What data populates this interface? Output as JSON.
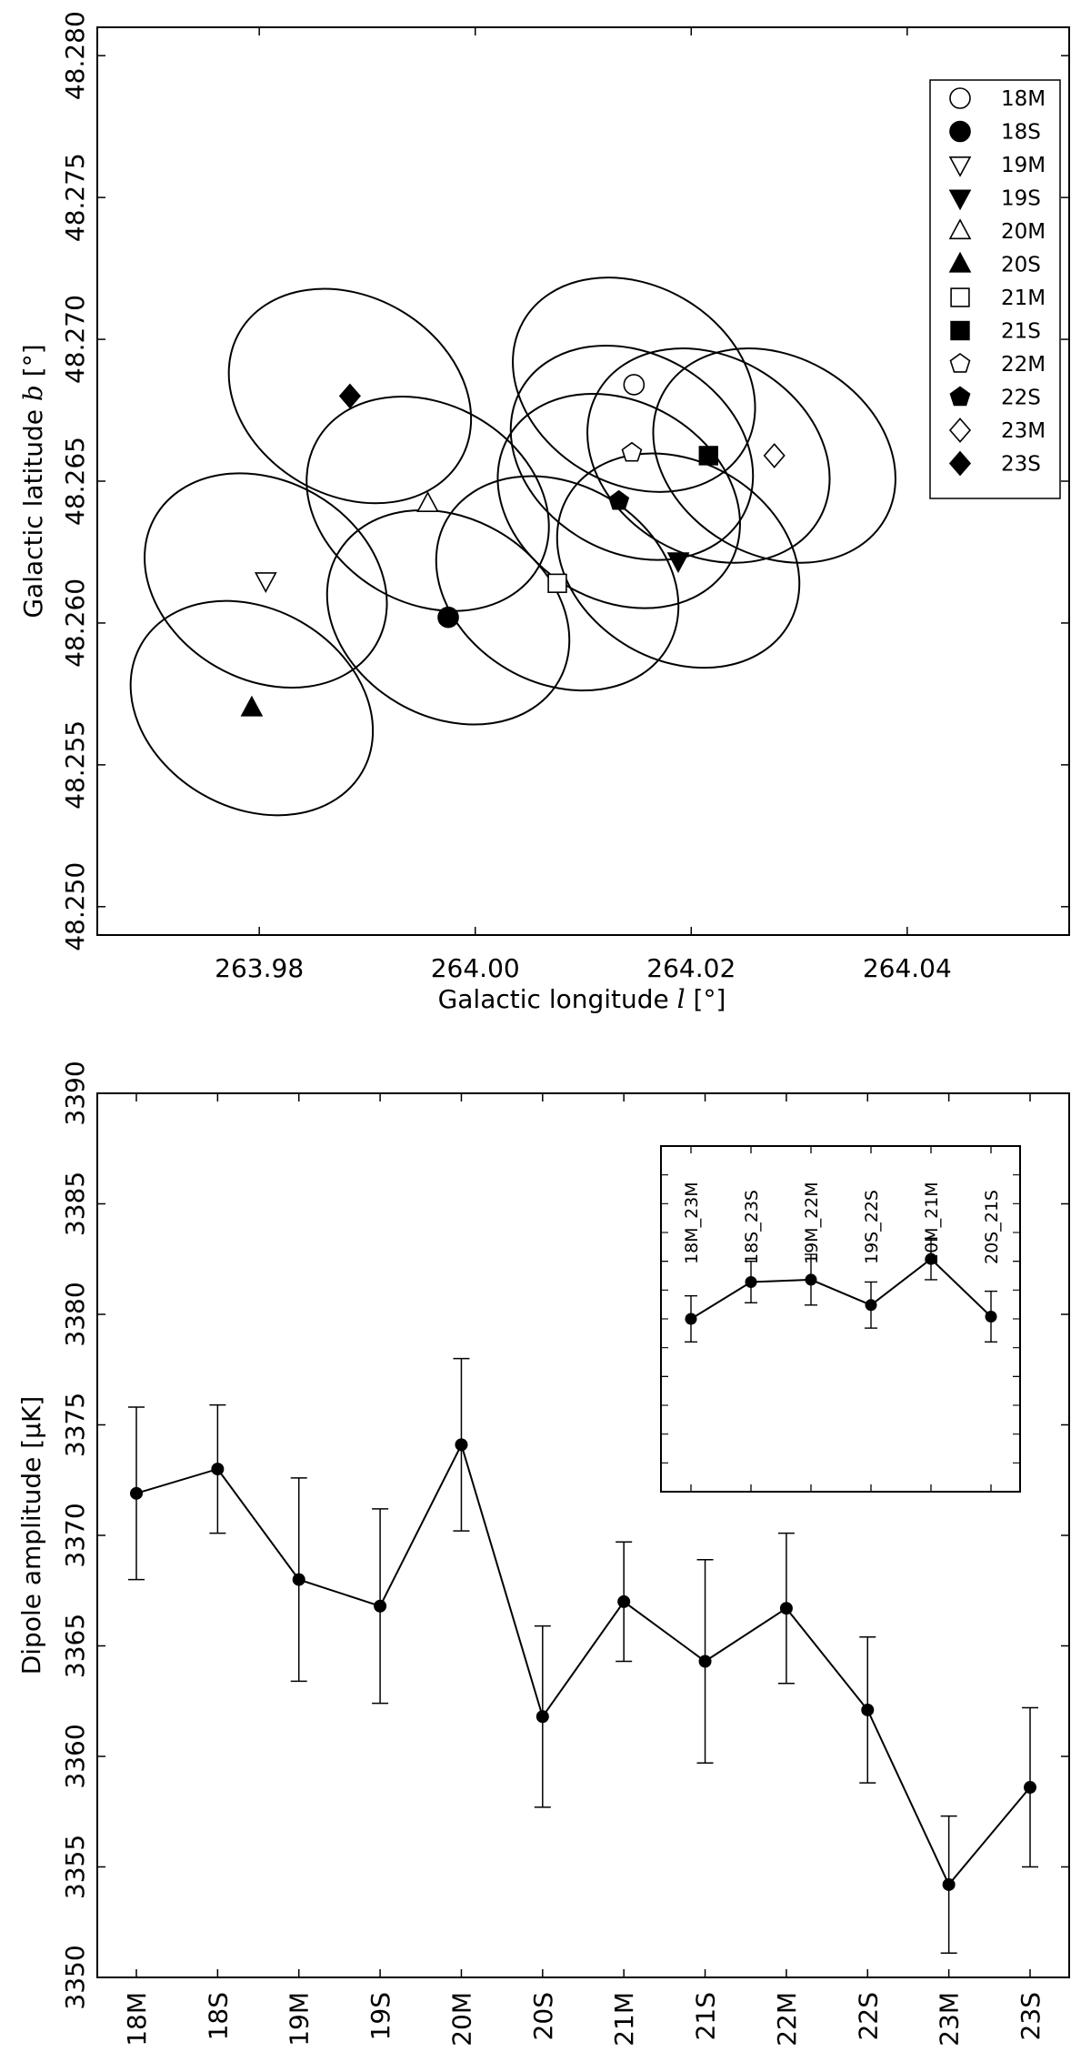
{
  "chart_data": [
    {
      "type": "scatter",
      "xlabel": "Galactic longitude",
      "xlabel_sym": "l",
      "xlabel_unit": "[°]",
      "ylabel": "Galactic latitude",
      "ylabel_sym": "b",
      "ylabel_unit": "[°]",
      "xlim": [
        263.965,
        264.055
      ],
      "ylim": [
        48.249,
        48.281
      ],
      "xticks": [
        263.98,
        264.0,
        264.02,
        264.04
      ],
      "xtick_labels": [
        "263.98",
        "264.00",
        "264.02",
        "264.04"
      ],
      "yticks": [
        48.25,
        48.255,
        48.26,
        48.265,
        48.27,
        48.275,
        48.28
      ],
      "ytick_labels": [
        "48.250",
        "48.255",
        "48.260",
        "48.265",
        "48.270",
        "48.275",
        "48.280"
      ],
      "legend_position": "top-right",
      "points": [
        {
          "label": "18M",
          "l": 264.0147,
          "b": 48.2684,
          "marker": "circle",
          "filled": false
        },
        {
          "label": "18S",
          "l": 263.9975,
          "b": 48.2602,
          "marker": "circle",
          "filled": true
        },
        {
          "label": "19M",
          "l": 263.9806,
          "b": 48.2615,
          "marker": "triangle-down",
          "filled": false
        },
        {
          "label": "19S",
          "l": 264.0188,
          "b": 48.2622,
          "marker": "triangle-down",
          "filled": true
        },
        {
          "label": "20M",
          "l": 263.9956,
          "b": 48.2642,
          "marker": "triangle-up",
          "filled": false
        },
        {
          "label": "20S",
          "l": 263.9793,
          "b": 48.257,
          "marker": "triangle-up",
          "filled": true
        },
        {
          "label": "21M",
          "l": 264.0076,
          "b": 48.2614,
          "marker": "square",
          "filled": false
        },
        {
          "label": "21S",
          "l": 264.0216,
          "b": 48.2659,
          "marker": "square",
          "filled": true
        },
        {
          "label": "22M",
          "l": 264.0145,
          "b": 48.266,
          "marker": "pentagon",
          "filled": false
        },
        {
          "label": "22S",
          "l": 264.0133,
          "b": 48.2643,
          "marker": "pentagon",
          "filled": true
        },
        {
          "label": "23M",
          "l": 264.0277,
          "b": 48.2659,
          "marker": "diamond",
          "filled": false
        },
        {
          "label": "23S",
          "l": 263.9884,
          "b": 48.268,
          "marker": "diamond",
          "filled": true
        }
      ],
      "ellipses": [
        {
          "center_l": 264.0147,
          "center_b": 48.2684,
          "semi_l": 0.0092,
          "semi_b": 0.0045,
          "angle_deg": 60
        },
        {
          "center_l": 263.9975,
          "center_b": 48.2602,
          "semi_l": 0.0092,
          "semi_b": 0.0045,
          "angle_deg": 60
        },
        {
          "center_l": 263.9806,
          "center_b": 48.2615,
          "semi_l": 0.0092,
          "semi_b": 0.0045,
          "angle_deg": 60
        },
        {
          "center_l": 264.0188,
          "center_b": 48.2622,
          "semi_l": 0.0092,
          "semi_b": 0.0045,
          "angle_deg": 60
        },
        {
          "center_l": 263.9956,
          "center_b": 48.2642,
          "semi_l": 0.0092,
          "semi_b": 0.0045,
          "angle_deg": 60
        },
        {
          "center_l": 263.9793,
          "center_b": 48.257,
          "semi_l": 0.0092,
          "semi_b": 0.0045,
          "angle_deg": 60
        },
        {
          "center_l": 264.0076,
          "center_b": 48.2614,
          "semi_l": 0.0092,
          "semi_b": 0.0045,
          "angle_deg": 60
        },
        {
          "center_l": 264.0216,
          "center_b": 48.2659,
          "semi_l": 0.0092,
          "semi_b": 0.0045,
          "angle_deg": 60
        },
        {
          "center_l": 264.0145,
          "center_b": 48.266,
          "semi_l": 0.0092,
          "semi_b": 0.0045,
          "angle_deg": 60
        },
        {
          "center_l": 264.0133,
          "center_b": 48.2643,
          "semi_l": 0.0092,
          "semi_b": 0.0045,
          "angle_deg": 60
        },
        {
          "center_l": 264.0277,
          "center_b": 48.2659,
          "semi_l": 0.0092,
          "semi_b": 0.0045,
          "angle_deg": 60
        },
        {
          "center_l": 263.9884,
          "center_b": 48.268,
          "semi_l": 0.0092,
          "semi_b": 0.0045,
          "angle_deg": 60
        }
      ]
    },
    {
      "type": "line",
      "ylabel": "Dipole amplitude",
      "ylabel_unit": "[μK]",
      "categories": [
        "18M",
        "18S",
        "19M",
        "19S",
        "20M",
        "20S",
        "21M",
        "21S",
        "22M",
        "22S",
        "23M",
        "23S"
      ],
      "values": [
        3371.9,
        3373.0,
        3368.0,
        3366.8,
        3374.1,
        3361.8,
        3367.0,
        3364.3,
        3366.7,
        3362.1,
        3354.2,
        3358.6
      ],
      "errors": [
        3.9,
        2.9,
        4.6,
        4.4,
        3.9,
        4.1,
        2.7,
        4.6,
        3.4,
        3.3,
        3.1,
        3.6
      ],
      "ylim": [
        3350,
        3390
      ],
      "yticks": [
        3350,
        3355,
        3360,
        3365,
        3370,
        3375,
        3380,
        3385,
        3390
      ],
      "ytick_labels": [
        "3350",
        "3355",
        "3360",
        "3365",
        "3370",
        "3375",
        "3380",
        "3385",
        "3390"
      ],
      "inset": {
        "type": "line",
        "categories": [
          "18M_23M",
          "18S_23S",
          "19M_22M",
          "19S_22S",
          "20M_21M",
          "20S_21S"
        ],
        "values": [
          3377.5,
          3379.1,
          3379.2,
          3378.1,
          3380.1,
          3377.6
        ],
        "errors": [
          1.0,
          0.9,
          1.1,
          1.0,
          0.9,
          1.1
        ],
        "ylim": [
          3370,
          3385
        ]
      }
    }
  ]
}
